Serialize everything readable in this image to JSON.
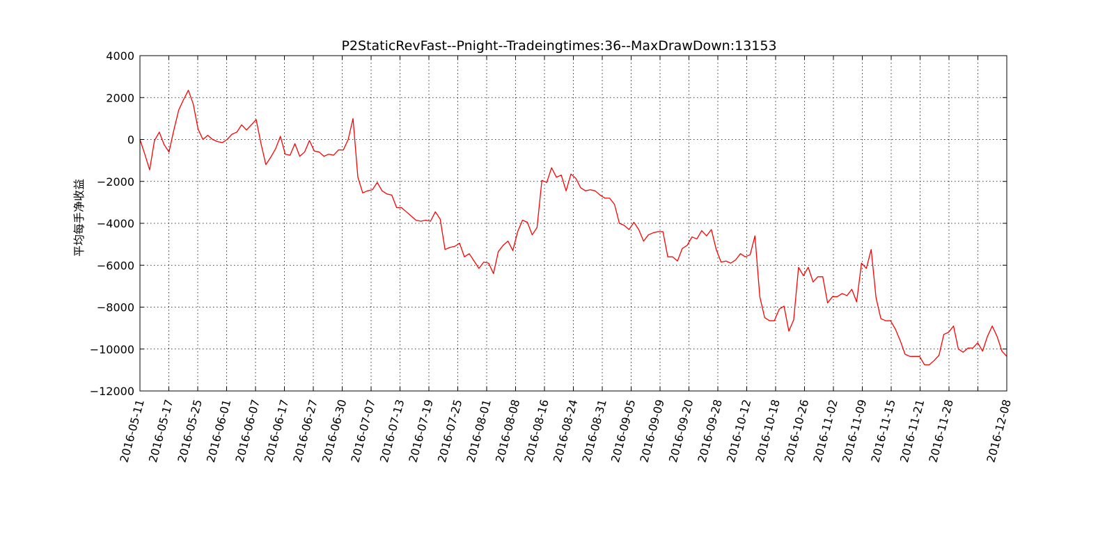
{
  "chart_data": {
    "type": "line",
    "title": "P2StaticRevFast--Pnight--Tradeingtimes:36--MaxDrawDown:13153",
    "xlabel": "",
    "ylabel": "平均每手净收益",
    "ylim": [
      -12000,
      4000
    ],
    "yticks": [
      4000,
      2000,
      0,
      -2000,
      -4000,
      -6000,
      -8000,
      -10000,
      -12000
    ],
    "ytick_labels": [
      "4000",
      "2000",
      "0",
      "−2000",
      "−4000",
      "−6000",
      "−8000",
      "−10000",
      "−12000"
    ],
    "xlim": [
      0,
      180
    ],
    "xtick_positions": [
      0,
      6,
      12,
      18,
      24,
      30,
      36,
      42,
      48,
      54,
      60,
      66,
      72,
      78,
      84,
      90,
      96,
      102,
      108,
      114,
      120,
      126,
      132,
      138,
      144,
      150,
      156,
      162,
      168,
      174,
      180
    ],
    "xtick_labels": [
      "2016-05-11",
      "2016-05-17",
      "2016-05-25",
      "2016-06-01",
      "2016-06-07",
      "2016-06-17",
      "2016-06-27",
      "2016-06-30",
      "2016-07-07",
      "2016-07-13",
      "2016-07-19",
      "2016-07-25",
      "2016-08-01",
      "2016-08-08",
      "2016-08-16",
      "2016-08-24",
      "2016-08-31",
      "2016-09-05",
      "2016-09-09",
      "2016-09-20",
      "2016-09-28",
      "2016-10-12",
      "2016-10-18",
      "2016-10-26",
      "2016-11-02",
      "2016-11-09",
      "2016-11-15",
      "2016-11-21",
      "2016-11-28",
      "",
      "2016-12-08"
    ],
    "grid": true,
    "series": [
      {
        "name": "",
        "color": "#ff0000",
        "values": [
          0,
          -700,
          -1450,
          -50,
          350,
          -250,
          -600,
          450,
          1400,
          1900,
          2350,
          1700,
          500,
          0,
          200,
          0,
          -100,
          -150,
          0,
          250,
          350,
          700,
          450,
          700,
          950,
          -200,
          -1200,
          -850,
          -450,
          150,
          -700,
          -750,
          -200,
          -800,
          -600,
          -50,
          -550,
          -600,
          -800,
          -700,
          -750,
          -500,
          -500,
          0,
          1000,
          -1800,
          -2550,
          -2450,
          -2400,
          -2050,
          -2450,
          -2600,
          -2650,
          -3250,
          -3250,
          -3450,
          -3650,
          -3850,
          -3900,
          -3850,
          -3900,
          -3450,
          -3800,
          -5250,
          -5150,
          -5100,
          -4950,
          -5600,
          -5450,
          -5800,
          -6150,
          -5850,
          -5900,
          -6400,
          -5350,
          -5050,
          -4850,
          -5300,
          -4400,
          -3850,
          -3950,
          -4550,
          -4200,
          -1950,
          -2050,
          -1350,
          -1800,
          -1700,
          -2450,
          -1650,
          -1850,
          -2300,
          -2450,
          -2400,
          -2450,
          -2650,
          -2800,
          -2800,
          -3100,
          -4000,
          -4100,
          -4300,
          -3950,
          -4300,
          -4850,
          -4550,
          -4450,
          -4400,
          -4400,
          -5600,
          -5600,
          -5800,
          -5200,
          -5050,
          -4650,
          -4750,
          -4350,
          -4600,
          -4300,
          -5250,
          -5850,
          -5800,
          -5900,
          -5750,
          -5450,
          -5600,
          -5500,
          -4600,
          -7500,
          -8500,
          -8650,
          -8650,
          -8100,
          -7950,
          -9150,
          -8600,
          -6100,
          -6500,
          -6100,
          -6800,
          -6550,
          -6550,
          -7800,
          -7500,
          -7500,
          -7350,
          -7450,
          -7150,
          -7750,
          -5900,
          -6150,
          -5250,
          -7550,
          -8550,
          -8650,
          -8650,
          -9050,
          -9600,
          -10250,
          -10350,
          -10350,
          -10350,
          -10750,
          -10750,
          -10550,
          -10300,
          -9300,
          -9200,
          -8900,
          -10000,
          -10150,
          -9950,
          -9950,
          -9700,
          -10100,
          -9400,
          -8900,
          -9400,
          -10100,
          -10350
        ]
      }
    ]
  }
}
